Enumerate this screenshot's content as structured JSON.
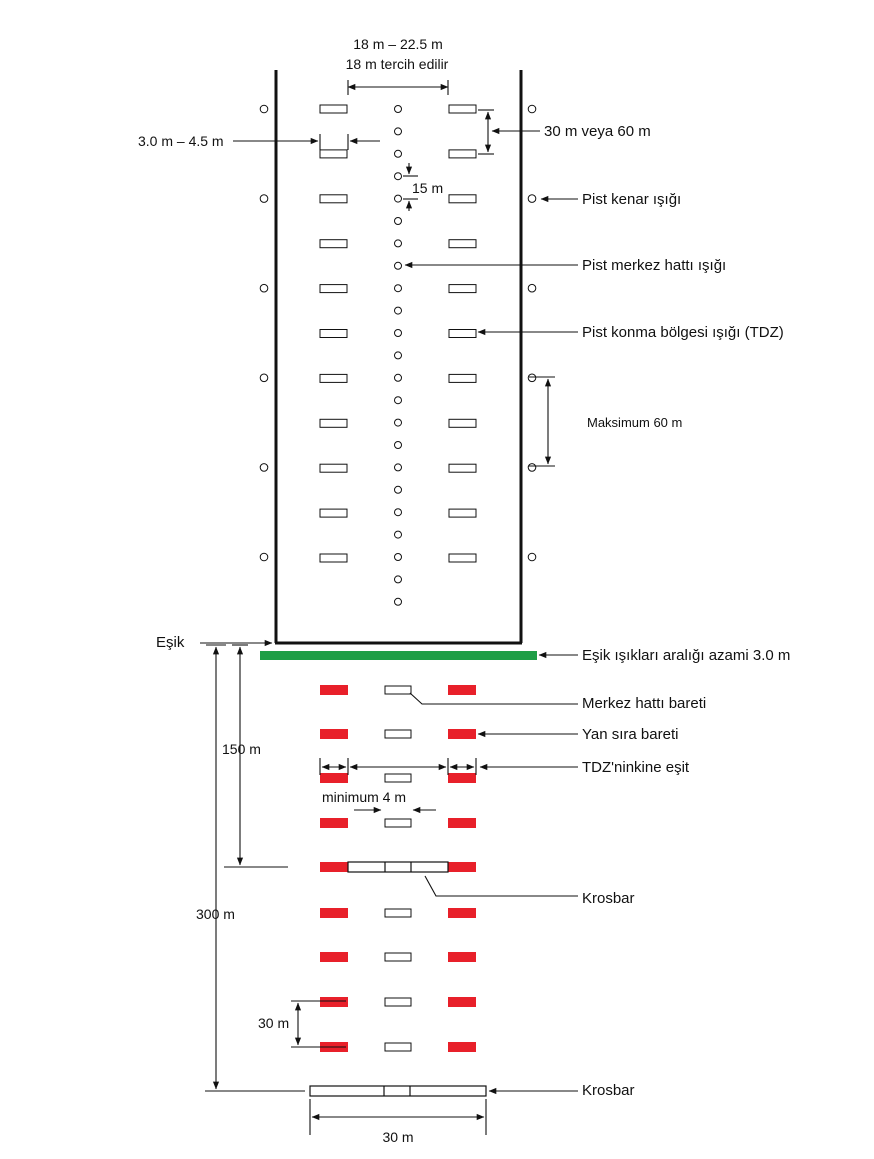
{
  "labels": {
    "width_range": "18 m – 22.5 m",
    "width_preferred": "18 m tercih edilir",
    "tdz_width": "3.0 m – 4.5 m",
    "tdz_spacing": "30 m veya 60 m",
    "cl_spacing": "15 m",
    "edge_light": "Pist kenar ışığı",
    "centerline_light": "Pist merkez hattı ışığı",
    "tdz_light": "Pist konma bölgesi ışığı (TDZ)",
    "max_spacing": "Maksimum 60 m",
    "threshold": "Eşik",
    "threshold_spacing": "Eşik ışıkları aralığı azami 3.0 m",
    "centerline_barrette": "Merkez hattı bareti",
    "side_row_barrette": "Yan sıra bareti",
    "equal_tdz": "TDZ'ninkine eşit",
    "minimum_gap": "minimum  4 m",
    "dist_150": "150 m",
    "dist_300": "300 m",
    "crossbar_1": "Krosbar",
    "crossbar_2": "Krosbar",
    "dist_30_spacing": "30 m",
    "dist_30_width": "30 m"
  },
  "colors": {
    "threshold_bar": "#1e9e46",
    "side_barrette": "#e8202a",
    "line": "#111111"
  }
}
